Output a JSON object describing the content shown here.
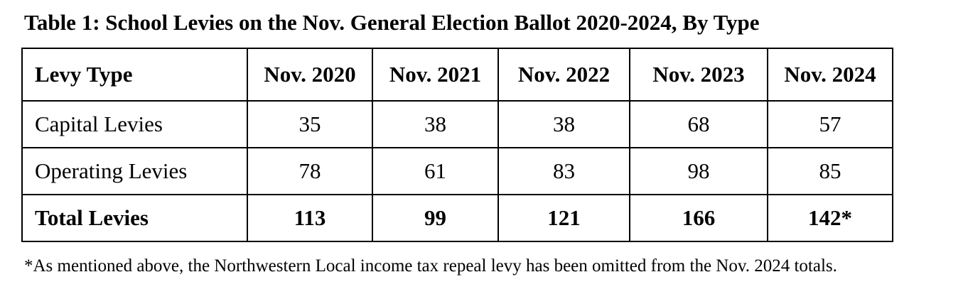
{
  "title": "Table 1: School Levies on the Nov. General Election Ballot 2020-2024, By Type",
  "table": {
    "headers": [
      "Levy Type",
      "Nov. 2020",
      "Nov. 2021",
      "Nov. 2022",
      "Nov. 2023",
      "Nov. 2024"
    ],
    "rows": [
      {
        "label": "Capital Levies",
        "values": [
          "35",
          "38",
          "38",
          "68",
          "57"
        ]
      },
      {
        "label": "Operating Levies",
        "values": [
          "78",
          "61",
          "83",
          "98",
          "85"
        ]
      }
    ],
    "total": {
      "label": "Total Levies",
      "values": [
        "113",
        "99",
        "121",
        "166",
        "142*"
      ]
    }
  },
  "footnote": "*As mentioned above, the Northwestern Local income tax repeal levy has been omitted from the Nov. 2024 totals."
}
